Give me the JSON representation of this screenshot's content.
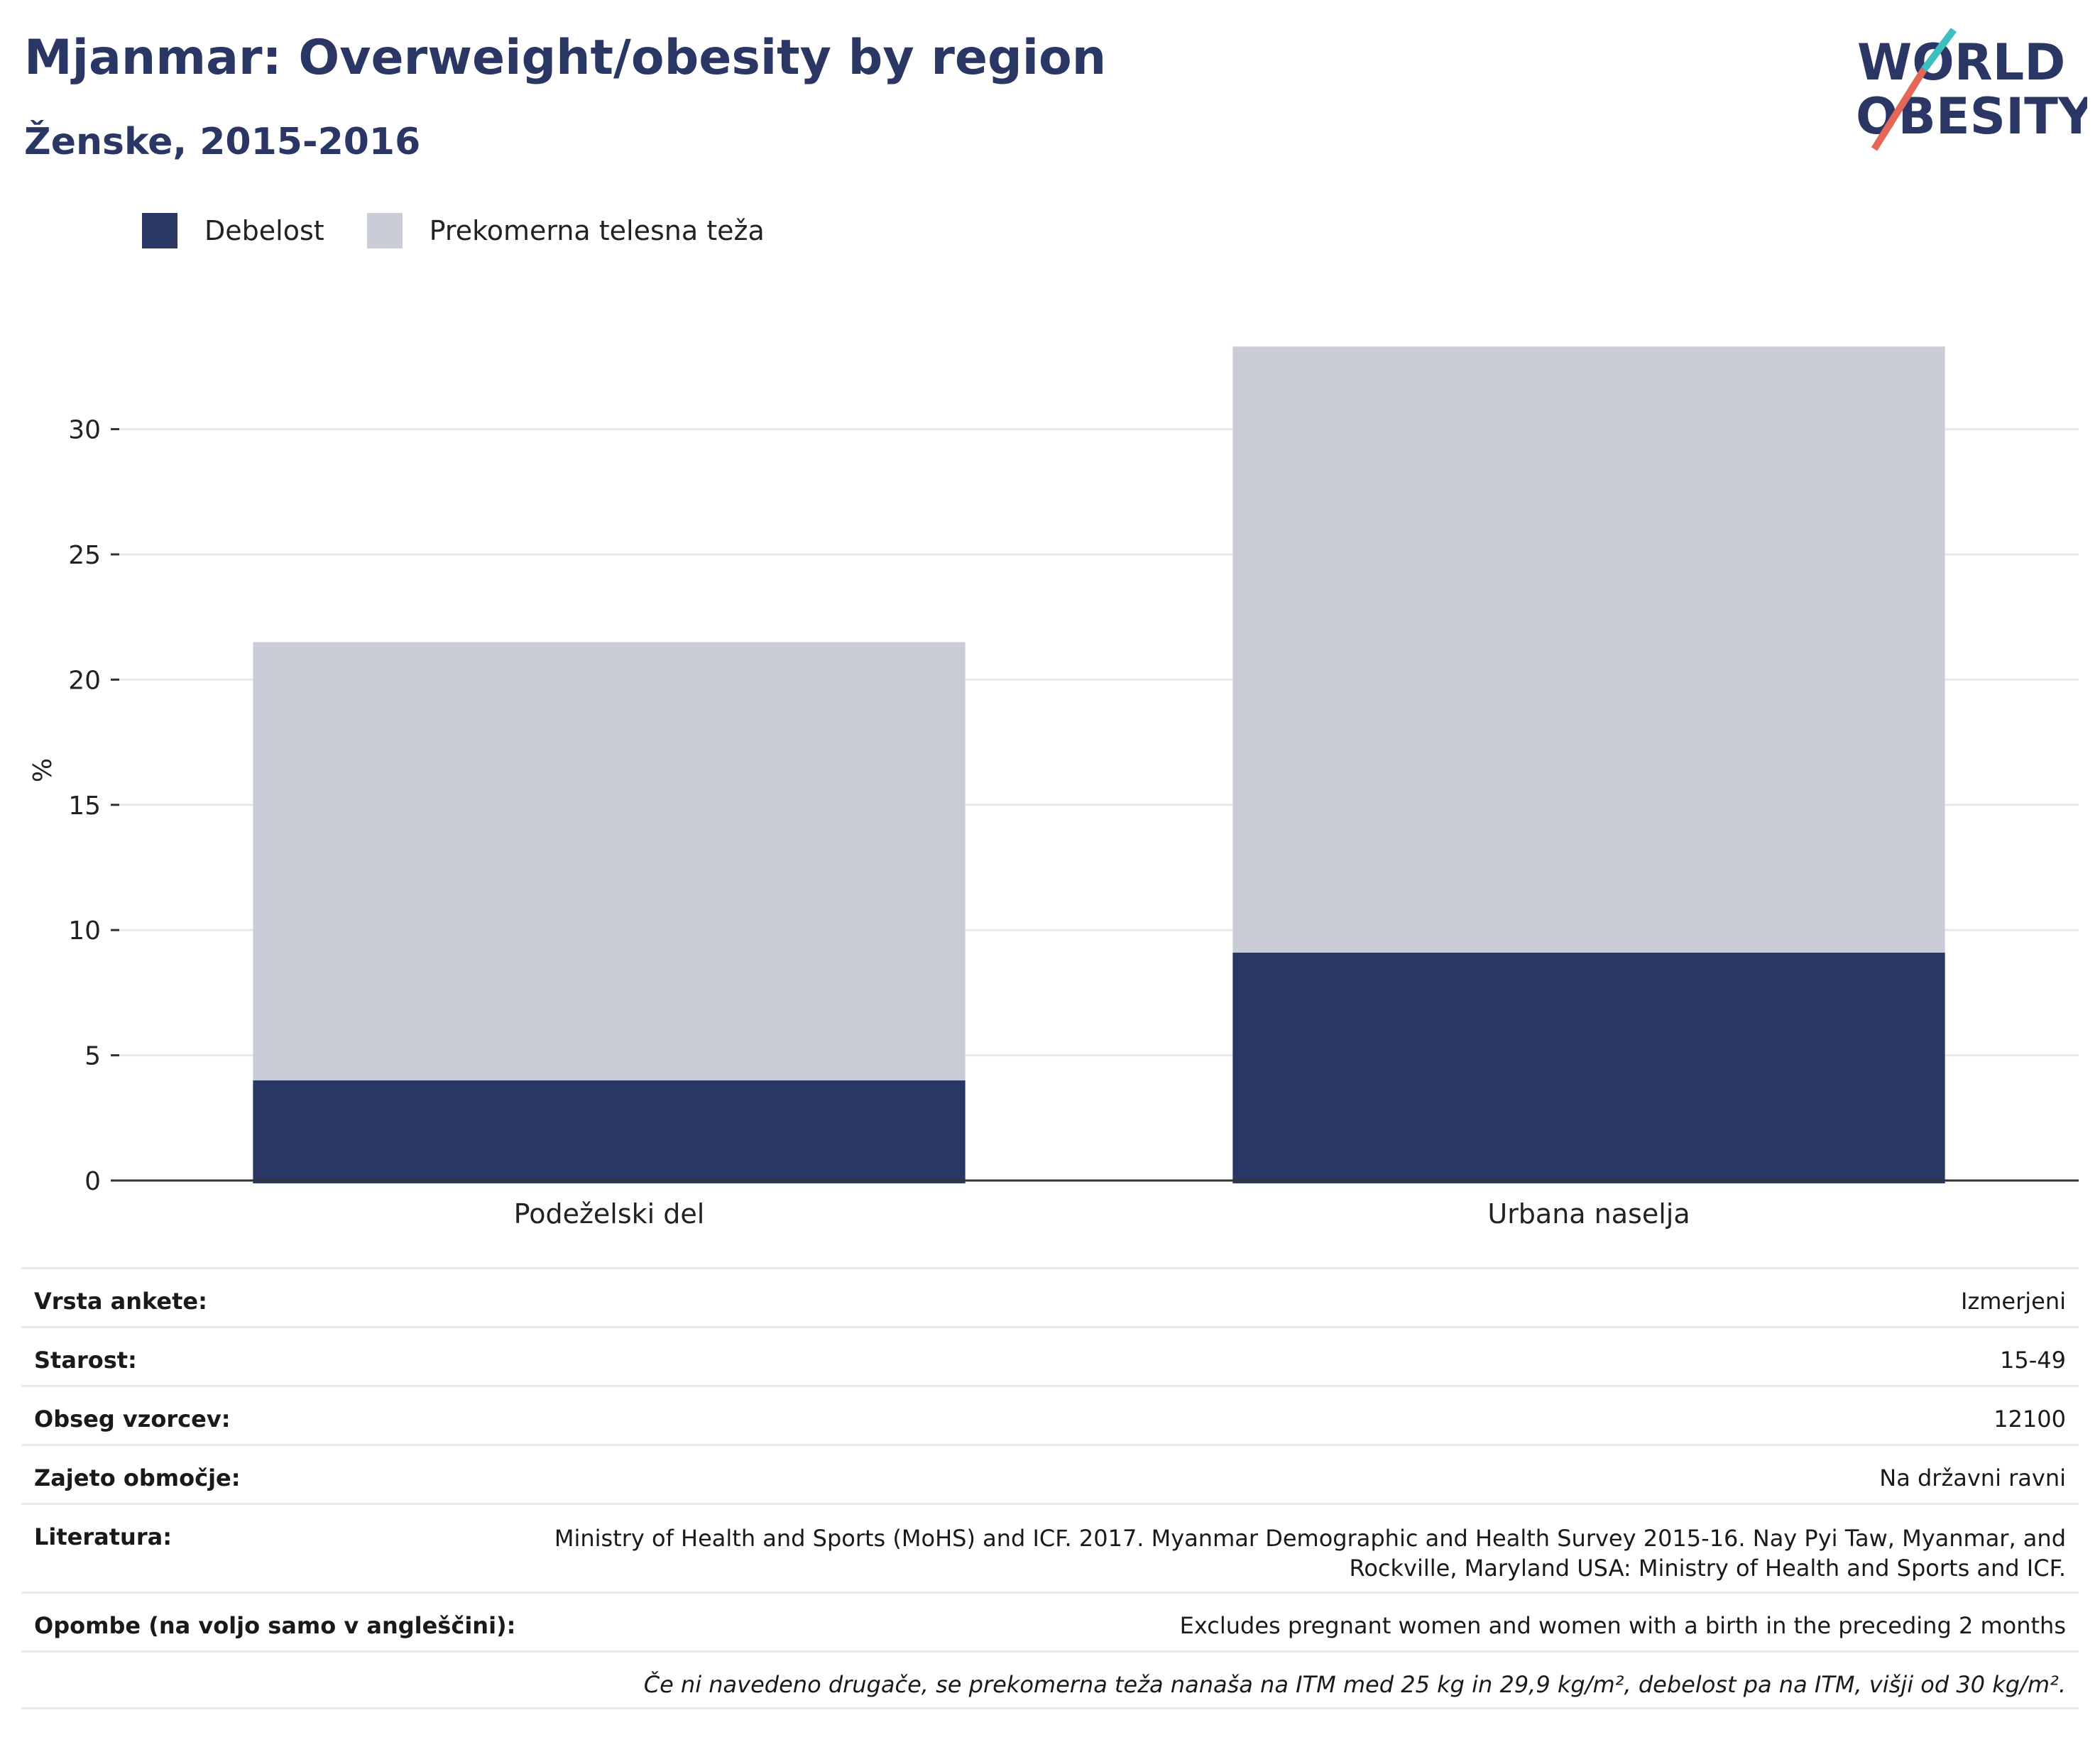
{
  "header": {
    "title": "Mjanmar: Overweight/obesity by region",
    "subtitle": "Ženske, 2015-2016",
    "logo_line1": "WORLD",
    "logo_line2": "OBESITY"
  },
  "colors": {
    "obesity": "#2a3664",
    "overweight": "#cacdd8",
    "title": "#2a3664",
    "logo_teal": "#3bbfc0",
    "logo_red": "#e4685a"
  },
  "chart_data": {
    "type": "bar",
    "stacked": true,
    "categories": [
      "Podeželski del",
      "Urbana naselja"
    ],
    "series": [
      {
        "name": "Debelost",
        "values": [
          4.0,
          9.1
        ]
      },
      {
        "name": "Prekomerna telesna teža",
        "values": [
          17.5,
          24.2
        ]
      }
    ],
    "ylabel": "%",
    "ylim": [
      0,
      35
    ],
    "yticks": [
      0,
      5,
      10,
      15,
      20,
      25,
      30
    ],
    "grid": true,
    "legend": "top-left"
  },
  "info": {
    "survey_type_label": "Vrsta ankete:",
    "survey_type_value": "Izmerjeni",
    "age_label": "Starost:",
    "age_value": "15-49",
    "sample_label": "Obseg vzorcev:",
    "sample_value": "12100",
    "coverage_label": "Zajeto območje:",
    "coverage_value": "Na državni ravni",
    "literature_label": "Literatura:",
    "literature_value": "Ministry of Health and Sports (MoHS) and ICF. 2017. Myanmar Demographic and Health Survey 2015-16. Nay Pyi Taw, Myanmar, and Rockville, Maryland USA: Ministry of Health and Sports and ICF.",
    "notes_label": "Opombe (na voljo samo v angleščini):",
    "notes_value": "Excludes pregnant women and women with a birth in the preceding 2 months",
    "footnote": "Če ni navedeno drugače, se prekomerna teža nanaša na ITM med 25 kg in 29,9 kg/m², debelost pa na ITM, višji od 30 kg/m²."
  }
}
